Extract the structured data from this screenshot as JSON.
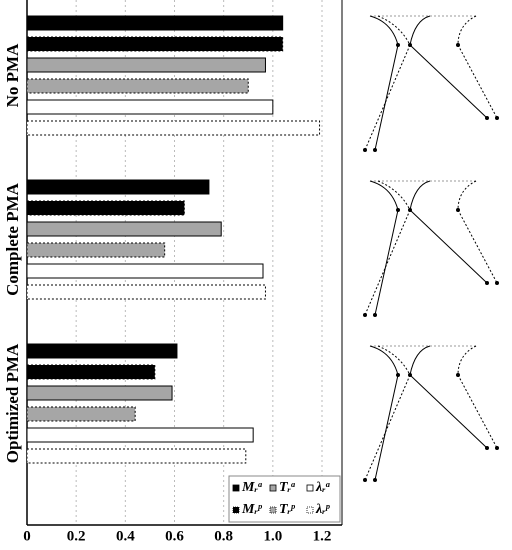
{
  "chart_data": {
    "type": "barh",
    "categories": [
      "No PMA",
      "Complete PMA",
      "Optimized PMA"
    ],
    "series": [
      {
        "name": "Mᵣᵃ",
        "color": "#000000",
        "border": "solid",
        "values": [
          1.04,
          0.74,
          0.61
        ]
      },
      {
        "name": "Mᵣᵖ",
        "color": "#000000",
        "border": "dotted",
        "values": [
          1.04,
          0.64,
          0.52
        ]
      },
      {
        "name": "Tᵣᵃ",
        "color": "#a6a6a6",
        "border": "solid",
        "values": [
          0.97,
          0.79,
          0.59
        ]
      },
      {
        "name": "Tᵣᵖ",
        "color": "#a6a6a6",
        "border": "dotted",
        "values": [
          0.9,
          0.56,
          0.44
        ]
      },
      {
        "name": "λᵣᵃ",
        "color": "#ffffff",
        "border": "solid",
        "values": [
          1.0,
          0.96,
          0.92
        ]
      },
      {
        "name": "λᵣᵖ",
        "color": "#ffffff",
        "border": "dotted",
        "values": [
          1.19,
          0.97,
          0.89
        ]
      }
    ],
    "xlim": [
      0,
      1.2
    ],
    "xticks": [
      0,
      0.2,
      0.4,
      0.6,
      0.8,
      {
        "value": 1.0,
        "label": "1.0"
      },
      1.2
    ],
    "grid": true,
    "legend": "lower right"
  }
}
